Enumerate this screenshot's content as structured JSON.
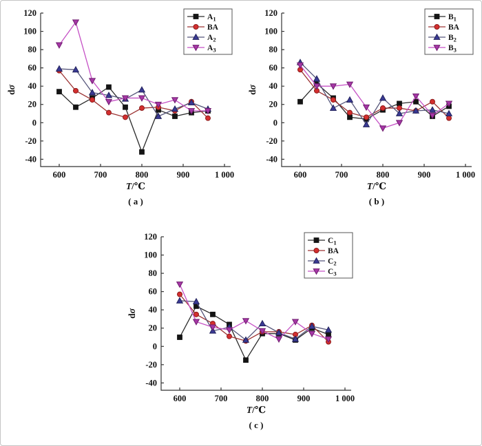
{
  "figure": {
    "background": "#ffffff",
    "border_color": "#c4c4c4",
    "axis_color": "#333333",
    "text_color": "#111111"
  },
  "chart_data": [
    {
      "type": "line",
      "panel": "( a )",
      "xlabel": "T/℃",
      "ylabel": "dσ",
      "x": [
        600,
        640,
        680,
        720,
        760,
        800,
        840,
        880,
        920,
        960
      ],
      "xticks": [
        600,
        700,
        800,
        900,
        1000
      ],
      "xtick_labels": [
        "600",
        "700",
        "800",
        "900",
        "1 000"
      ],
      "xlim": [
        555,
        1015
      ],
      "ylim": [
        -40,
        120
      ],
      "ytick_step": 20,
      "grid": false,
      "legend_position": "top-right",
      "series": [
        {
          "name": "A1",
          "label": "A",
          "sub": "1",
          "marker": "square",
          "marker_color": "#141414",
          "marker_edge": "#141414",
          "line_color": "#2b2b2b",
          "values": [
            34,
            17,
            27,
            39,
            17,
            -32,
            14,
            7,
            11,
            13
          ]
        },
        {
          "name": "BA",
          "label": "BA",
          "sub": "",
          "marker": "circle",
          "marker_color": "#d42f2f",
          "marker_edge": "#8c1a1a",
          "line_color": "#9c3333",
          "values": [
            57,
            35,
            25,
            11,
            6,
            16,
            17,
            13,
            23,
            5
          ]
        },
        {
          "name": "A2",
          "label": "A",
          "sub": "2",
          "marker": "triangle-up",
          "marker_color": "#3a3a94",
          "marker_edge": "#22225c",
          "line_color": "#55557a",
          "values": [
            59,
            58,
            33,
            30,
            26,
            36,
            7,
            15,
            22,
            15
          ]
        },
        {
          "name": "A3",
          "label": "A",
          "sub": "3",
          "marker": "triangle-down",
          "marker_color": "#a637a6",
          "marker_edge": "#6f1d6f",
          "line_color": "#c550c5",
          "values": [
            85,
            110,
            46,
            23,
            27,
            27,
            20,
            25,
            13,
            13
          ]
        }
      ]
    },
    {
      "type": "line",
      "panel": "( b )",
      "xlabel": "T/℃",
      "ylabel": "dσ",
      "x": [
        600,
        640,
        680,
        720,
        760,
        800,
        840,
        880,
        920,
        960
      ],
      "xticks": [
        600,
        700,
        800,
        900,
        1000
      ],
      "xtick_labels": [
        "600",
        "700",
        "800",
        "900",
        "1 000"
      ],
      "xlim": [
        555,
        1015
      ],
      "ylim": [
        -40,
        120
      ],
      "ytick_step": 20,
      "grid": false,
      "legend_position": "top-right",
      "series": [
        {
          "name": "B1",
          "label": "B",
          "sub": "1",
          "marker": "square",
          "marker_color": "#141414",
          "marker_edge": "#141414",
          "line_color": "#2b2b2b",
          "values": [
            23,
            43,
            27,
            6,
            4,
            14,
            21,
            23,
            7,
            18
          ]
        },
        {
          "name": "BA",
          "label": "BA",
          "sub": "",
          "marker": "circle",
          "marker_color": "#d42f2f",
          "marker_edge": "#8c1a1a",
          "line_color": "#9c3333",
          "values": [
            58,
            35,
            25,
            11,
            6,
            16,
            16,
            13,
            23,
            5
          ]
        },
        {
          "name": "B2",
          "label": "B",
          "sub": "2",
          "marker": "triangle-up",
          "marker_color": "#3a3a94",
          "marker_edge": "#22225c",
          "line_color": "#55557a",
          "values": [
            66,
            48,
            16,
            25,
            -2,
            27,
            10,
            13,
            14,
            10
          ]
        },
        {
          "name": "B3",
          "label": "B",
          "sub": "3",
          "marker": "triangle-down",
          "marker_color": "#a637a6",
          "marker_edge": "#6f1d6f",
          "line_color": "#c550c5",
          "values": [
            63,
            40,
            40,
            42,
            17,
            -6,
            0,
            29,
            8,
            21
          ]
        }
      ]
    },
    {
      "type": "line",
      "panel": "( c )",
      "xlabel": "T/℃",
      "ylabel": "dσ",
      "x": [
        600,
        640,
        680,
        720,
        760,
        800,
        840,
        880,
        920,
        960
      ],
      "xticks": [
        600,
        700,
        800,
        900,
        1000
      ],
      "xtick_labels": [
        "600",
        "700",
        "800",
        "900",
        "1 000"
      ],
      "xlim": [
        555,
        1015
      ],
      "ylim": [
        -40,
        120
      ],
      "ytick_step": 20,
      "grid": false,
      "legend_position": "top-right",
      "series": [
        {
          "name": "C1",
          "label": "C",
          "sub": "1",
          "marker": "square",
          "marker_color": "#141414",
          "marker_edge": "#141414",
          "line_color": "#2b2b2b",
          "values": [
            10,
            44,
            35,
            24,
            -15,
            14,
            14,
            7,
            20,
            13
          ]
        },
        {
          "name": "BA",
          "label": "BA",
          "sub": "",
          "marker": "circle",
          "marker_color": "#d42f2f",
          "marker_edge": "#8c1a1a",
          "line_color": "#9c3333",
          "values": [
            57,
            35,
            25,
            11,
            6,
            16,
            16,
            13,
            23,
            5
          ]
        },
        {
          "name": "C2",
          "label": "C",
          "sub": "2",
          "marker": "triangle-up",
          "marker_color": "#3a3a94",
          "marker_edge": "#22225c",
          "line_color": "#55557a",
          "values": [
            50,
            49,
            17,
            21,
            7,
            25,
            15,
            8,
            22,
            18
          ]
        },
        {
          "name": "C3",
          "label": "C",
          "sub": "3",
          "marker": "triangle-down",
          "marker_color": "#a637a6",
          "marker_edge": "#6f1d6f",
          "line_color": "#c550c5",
          "values": [
            68,
            27,
            21,
            18,
            28,
            17,
            8,
            27,
            14,
            8
          ]
        }
      ]
    }
  ]
}
